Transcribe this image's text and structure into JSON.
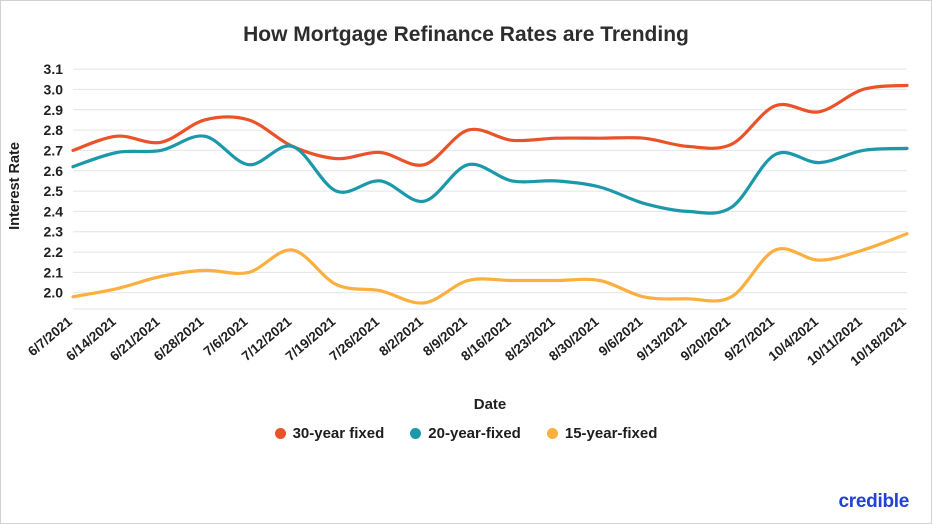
{
  "chart_data": {
    "type": "line",
    "title": "How Mortgage Refinance Rates are Trending",
    "xlabel": "Date",
    "ylabel": "Interest Rate",
    "ylim": [
      1.92,
      3.13
    ],
    "yticks": [
      2.0,
      2.1,
      2.2,
      2.3,
      2.4,
      2.5,
      2.6,
      2.7,
      2.8,
      2.9,
      3.0,
      3.1
    ],
    "grid": true,
    "grid_color": "#e4e4e4",
    "text_color": "#1f1f1f",
    "legend_position": "bottom",
    "categories": [
      "6/7/2021",
      "6/14/2021",
      "6/21/2021",
      "6/28/2021",
      "7/6/2021",
      "7/12/2021",
      "7/19/2021",
      "7/26/2021",
      "8/2/2021",
      "8/9/2021",
      "8/16/2021",
      "8/23/2021",
      "8/30/2021",
      "9/6/2021",
      "9/13/2021",
      "9/20/2021",
      "9/27/2021",
      "10/4/2021",
      "10/11/2021",
      "10/18/2021"
    ],
    "series": [
      {
        "name": "30-year fixed",
        "color": "#ea5329",
        "values": [
          2.7,
          2.77,
          2.74,
          2.85,
          2.85,
          2.72,
          2.66,
          2.69,
          2.63,
          2.8,
          2.75,
          2.76,
          2.76,
          2.76,
          2.72,
          2.73,
          2.92,
          2.89,
          3.0,
          3.02
        ]
      },
      {
        "name": "20-year-fixed",
        "color": "#1b98a9",
        "values": [
          2.62,
          2.69,
          2.7,
          2.77,
          2.63,
          2.72,
          2.5,
          2.55,
          2.45,
          2.63,
          2.55,
          2.55,
          2.52,
          2.44,
          2.4,
          2.42,
          2.68,
          2.64,
          2.7,
          2.71
        ]
      },
      {
        "name": "15-year-fixed",
        "color": "#fbaf3e",
        "values": [
          1.98,
          2.02,
          2.08,
          2.11,
          2.1,
          2.21,
          2.04,
          2.01,
          1.95,
          2.06,
          2.06,
          2.06,
          2.06,
          1.98,
          1.97,
          1.98,
          2.21,
          2.16,
          2.21,
          2.29
        ]
      }
    ]
  },
  "branding": {
    "logo_text": "credible",
    "color": "#2440d6"
  }
}
